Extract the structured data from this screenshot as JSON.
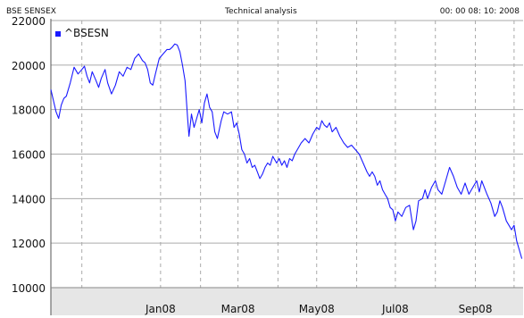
{
  "header": {
    "left": "BSE SENSEX",
    "center": "Technical analysis",
    "right": "00: 00 08: 10: 2008"
  },
  "colors": {
    "series": "#1a1aff",
    "grid": "#aaaaaa",
    "x_axis_band": "#e6e6e6",
    "background": "#ffffff"
  },
  "chart_data": {
    "type": "line",
    "title": "",
    "xlabel": "",
    "ylabel": "",
    "grid": true,
    "legend_position": "top-left",
    "ylim": [
      10000,
      22000
    ],
    "y_ticks": [
      10000,
      12000,
      14000,
      16000,
      18000,
      20000,
      22000
    ],
    "y_tick_labels": [
      "10000",
      "12000",
      "14000",
      "16000",
      "18000",
      "20000",
      "22000"
    ],
    "xlim": [
      "2007-10-08",
      "2008-10-08"
    ],
    "x_ticks": [
      "2008-01-01",
      "2008-03-01",
      "2008-05-01",
      "2008-07-01",
      "2008-09-01"
    ],
    "x_tick_labels": [
      "Jan08",
      "Mar08",
      "May08",
      "Jul08",
      "Sep08"
    ],
    "x_minor_gridlines": [
      "2007-11-01",
      "2008-02-01",
      "2008-04-01",
      "2008-06-01",
      "2008-08-01",
      "2008-10-01"
    ],
    "series": [
      {
        "name": "^BSESN",
        "points": [
          [
            "2007-10-08",
            18900
          ],
          [
            "2007-10-10",
            18400
          ],
          [
            "2007-10-12",
            17900
          ],
          [
            "2007-10-14",
            17600
          ],
          [
            "2007-10-16",
            18200
          ],
          [
            "2007-10-18",
            18500
          ],
          [
            "2007-10-20",
            18600
          ],
          [
            "2007-10-23",
            19200
          ],
          [
            "2007-10-26",
            19900
          ],
          [
            "2007-10-29",
            19600
          ],
          [
            "2007-11-01",
            19800
          ],
          [
            "2007-11-03",
            19950
          ],
          [
            "2007-11-05",
            19500
          ],
          [
            "2007-11-07",
            19200
          ],
          [
            "2007-11-09",
            19700
          ],
          [
            "2007-11-12",
            19300
          ],
          [
            "2007-11-14",
            19000
          ],
          [
            "2007-11-16",
            19400
          ],
          [
            "2007-11-19",
            19800
          ],
          [
            "2007-11-21",
            19200
          ],
          [
            "2007-11-24",
            18700
          ],
          [
            "2007-11-27",
            19100
          ],
          [
            "2007-11-30",
            19700
          ],
          [
            "2007-12-03",
            19500
          ],
          [
            "2007-12-06",
            19900
          ],
          [
            "2007-12-09",
            19800
          ],
          [
            "2007-12-12",
            20300
          ],
          [
            "2007-12-15",
            20500
          ],
          [
            "2007-12-18",
            20200
          ],
          [
            "2007-12-20",
            20100
          ],
          [
            "2007-12-22",
            19800
          ],
          [
            "2007-12-24",
            19200
          ],
          [
            "2007-12-26",
            19100
          ],
          [
            "2007-12-28",
            19600
          ],
          [
            "2007-12-31",
            20300
          ],
          [
            "2008-01-03",
            20500
          ],
          [
            "2008-01-06",
            20700
          ],
          [
            "2008-01-08",
            20700
          ],
          [
            "2008-01-10",
            20800
          ],
          [
            "2008-01-12",
            20950
          ],
          [
            "2008-01-14",
            20900
          ],
          [
            "2008-01-16",
            20600
          ],
          [
            "2008-01-18",
            20000
          ],
          [
            "2008-01-20",
            19300
          ],
          [
            "2008-01-22",
            17600
          ],
          [
            "2008-01-23",
            16800
          ],
          [
            "2008-01-25",
            17800
          ],
          [
            "2008-01-27",
            17200
          ],
          [
            "2008-01-29",
            17600
          ],
          [
            "2008-01-31",
            18000
          ],
          [
            "2008-02-02",
            17400
          ],
          [
            "2008-02-04",
            18300
          ],
          [
            "2008-02-06",
            18700
          ],
          [
            "2008-02-08",
            18100
          ],
          [
            "2008-02-10",
            17900
          ],
          [
            "2008-02-12",
            17000
          ],
          [
            "2008-02-14",
            16700
          ],
          [
            "2008-02-17",
            17500
          ],
          [
            "2008-02-19",
            17900
          ],
          [
            "2008-02-22",
            17800
          ],
          [
            "2008-02-25",
            17900
          ],
          [
            "2008-02-27",
            17200
          ],
          [
            "2008-02-29",
            17400
          ],
          [
            "2008-03-02",
            16900
          ],
          [
            "2008-03-04",
            16200
          ],
          [
            "2008-03-06",
            16000
          ],
          [
            "2008-03-08",
            15600
          ],
          [
            "2008-03-10",
            15800
          ],
          [
            "2008-03-12",
            15400
          ],
          [
            "2008-03-14",
            15500
          ],
          [
            "2008-03-16",
            15200
          ],
          [
            "2008-03-18",
            14900
          ],
          [
            "2008-03-20",
            15100
          ],
          [
            "2008-03-22",
            15400
          ],
          [
            "2008-03-24",
            15600
          ],
          [
            "2008-03-26",
            15500
          ],
          [
            "2008-03-28",
            15900
          ],
          [
            "2008-03-31",
            15600
          ],
          [
            "2008-04-02",
            15800
          ],
          [
            "2008-04-04",
            15500
          ],
          [
            "2008-04-06",
            15700
          ],
          [
            "2008-04-08",
            15400
          ],
          [
            "2008-04-10",
            15800
          ],
          [
            "2008-04-12",
            15700
          ],
          [
            "2008-04-14",
            16000
          ],
          [
            "2008-04-16",
            16200
          ],
          [
            "2008-04-19",
            16500
          ],
          [
            "2008-04-22",
            16700
          ],
          [
            "2008-04-25",
            16500
          ],
          [
            "2008-04-28",
            16900
          ],
          [
            "2008-05-01",
            17200
          ],
          [
            "2008-05-03",
            17100
          ],
          [
            "2008-05-05",
            17500
          ],
          [
            "2008-05-07",
            17300
          ],
          [
            "2008-05-09",
            17200
          ],
          [
            "2008-05-11",
            17400
          ],
          [
            "2008-05-13",
            17000
          ],
          [
            "2008-05-16",
            17200
          ],
          [
            "2008-05-19",
            16800
          ],
          [
            "2008-05-22",
            16500
          ],
          [
            "2008-05-25",
            16300
          ],
          [
            "2008-05-28",
            16400
          ],
          [
            "2008-05-31",
            16200
          ],
          [
            "2008-06-03",
            16000
          ],
          [
            "2008-06-06",
            15600
          ],
          [
            "2008-06-09",
            15200
          ],
          [
            "2008-06-11",
            15000
          ],
          [
            "2008-06-13",
            15200
          ],
          [
            "2008-06-15",
            15000
          ],
          [
            "2008-06-17",
            14600
          ],
          [
            "2008-06-19",
            14800
          ],
          [
            "2008-06-21",
            14400
          ],
          [
            "2008-06-23",
            14200
          ],
          [
            "2008-06-25",
            14000
          ],
          [
            "2008-06-27",
            13600
          ],
          [
            "2008-06-29",
            13500
          ],
          [
            "2008-07-01",
            13000
          ],
          [
            "2008-07-03",
            13400
          ],
          [
            "2008-07-06",
            13200
          ],
          [
            "2008-07-09",
            13600
          ],
          [
            "2008-07-12",
            13700
          ],
          [
            "2008-07-15",
            12600
          ],
          [
            "2008-07-17",
            13000
          ],
          [
            "2008-07-19",
            13900
          ],
          [
            "2008-07-22",
            14000
          ],
          [
            "2008-07-24",
            14400
          ],
          [
            "2008-07-26",
            14000
          ],
          [
            "2008-07-29",
            14500
          ],
          [
            "2008-08-01",
            14800
          ],
          [
            "2008-08-03",
            14400
          ],
          [
            "2008-08-06",
            14200
          ],
          [
            "2008-08-09",
            14800
          ],
          [
            "2008-08-12",
            15400
          ],
          [
            "2008-08-15",
            15000
          ],
          [
            "2008-08-18",
            14500
          ],
          [
            "2008-08-21",
            14200
          ],
          [
            "2008-08-24",
            14700
          ],
          [
            "2008-08-27",
            14200
          ],
          [
            "2008-08-30",
            14500
          ],
          [
            "2008-09-02",
            14800
          ],
          [
            "2008-09-04",
            14300
          ],
          [
            "2008-09-06",
            14800
          ],
          [
            "2008-09-08",
            14500
          ],
          [
            "2008-09-10",
            14200
          ],
          [
            "2008-09-13",
            13800
          ],
          [
            "2008-09-16",
            13200
          ],
          [
            "2008-09-18",
            13400
          ],
          [
            "2008-09-20",
            13900
          ],
          [
            "2008-09-22",
            13600
          ],
          [
            "2008-09-25",
            13000
          ],
          [
            "2008-09-27",
            12800
          ],
          [
            "2008-09-29",
            12600
          ],
          [
            "2008-10-01",
            12800
          ],
          [
            "2008-10-03",
            12100
          ],
          [
            "2008-10-05",
            11700
          ],
          [
            "2008-10-07",
            11300
          ]
        ]
      }
    ]
  }
}
